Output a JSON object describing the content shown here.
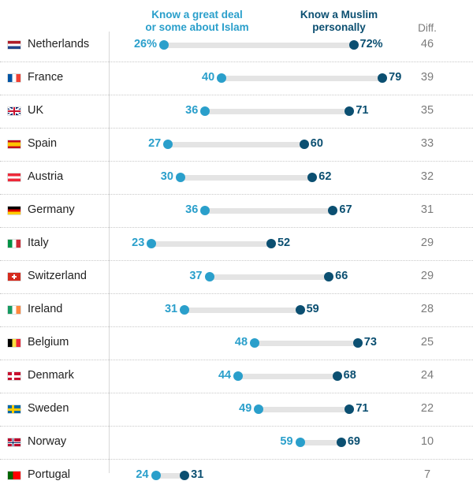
{
  "chart_data": {
    "type": "dot-plot",
    "legend": {
      "light": "Know a great deal or some about Islam",
      "dark": "Know a Muslim personally"
    },
    "diff_header": "Diff.",
    "series": [
      {
        "name": "Know a great deal or some about Islam",
        "color": "#2a9fcb"
      },
      {
        "name": "Know a Muslim personally",
        "color": "#0b4f71"
      }
    ],
    "rows": [
      {
        "country": "Netherlands",
        "flag": "netherlands",
        "know_islam": 26,
        "know_muslim": 72,
        "light_label": "26%",
        "dark_label": "72%",
        "diff": "46"
      },
      {
        "country": "France",
        "flag": "france",
        "know_islam": 40,
        "know_muslim": 79,
        "light_label": "40",
        "dark_label": "79",
        "diff": "39"
      },
      {
        "country": "UK",
        "flag": "uk",
        "know_islam": 36,
        "know_muslim": 71,
        "light_label": "36",
        "dark_label": "71",
        "diff": "35"
      },
      {
        "country": "Spain",
        "flag": "spain",
        "know_islam": 27,
        "know_muslim": 60,
        "light_label": "27",
        "dark_label": "60",
        "diff": "33"
      },
      {
        "country": "Austria",
        "flag": "austria",
        "know_islam": 30,
        "know_muslim": 62,
        "light_label": "30",
        "dark_label": "62",
        "diff": "32"
      },
      {
        "country": "Germany",
        "flag": "germany",
        "know_islam": 36,
        "know_muslim": 67,
        "light_label": "36",
        "dark_label": "67",
        "diff": "31"
      },
      {
        "country": "Italy",
        "flag": "italy",
        "know_islam": 23,
        "know_muslim": 52,
        "light_label": "23",
        "dark_label": "52",
        "diff": "29"
      },
      {
        "country": "Switzerland",
        "flag": "switzerland",
        "know_islam": 37,
        "know_muslim": 66,
        "light_label": "37",
        "dark_label": "66",
        "diff": "29"
      },
      {
        "country": "Ireland",
        "flag": "ireland",
        "know_islam": 31,
        "know_muslim": 59,
        "light_label": "31",
        "dark_label": "59",
        "diff": "28"
      },
      {
        "country": "Belgium",
        "flag": "belgium",
        "know_islam": 48,
        "know_muslim": 73,
        "light_label": "48",
        "dark_label": "73",
        "diff": "25"
      },
      {
        "country": "Denmark",
        "flag": "denmark",
        "know_islam": 44,
        "know_muslim": 68,
        "light_label": "44",
        "dark_label": "68",
        "diff": "24"
      },
      {
        "country": "Sweden",
        "flag": "sweden",
        "know_islam": 49,
        "know_muslim": 71,
        "light_label": "49",
        "dark_label": "71",
        "diff": "22"
      },
      {
        "country": "Norway",
        "flag": "norway",
        "know_islam": 59,
        "know_muslim": 69,
        "light_label": "59",
        "dark_label": "69",
        "diff": "10"
      },
      {
        "country": "Portugal",
        "flag": "portugal",
        "know_islam": 24,
        "know_muslim": 31,
        "light_label": "24",
        "dark_label": "31",
        "diff": "7"
      }
    ]
  }
}
